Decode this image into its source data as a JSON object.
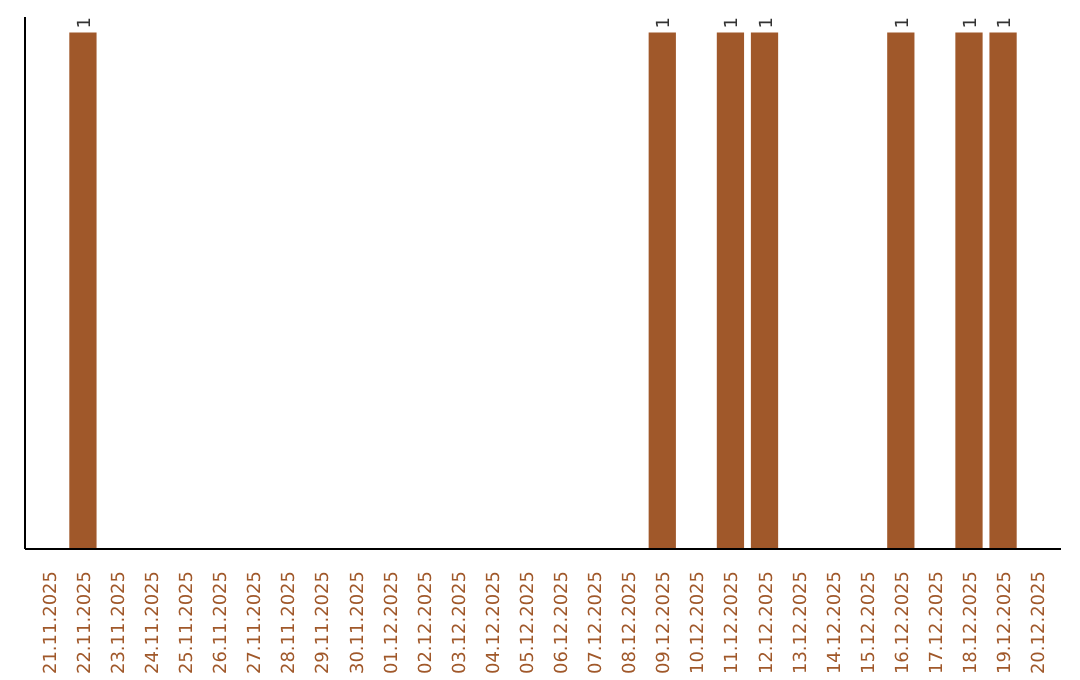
{
  "chart_data": {
    "type": "bar",
    "categories": [
      "21.11.2025",
      "22.11.2025",
      "23.11.2025",
      "24.11.2025",
      "25.11.2025",
      "26.11.2025",
      "27.11.2025",
      "28.11.2025",
      "29.11.2025",
      "30.11.2025",
      "01.12.2025",
      "02.12.2025",
      "03.12.2025",
      "04.12.2025",
      "05.12.2025",
      "06.12.2025",
      "07.12.2025",
      "08.12.2025",
      "09.12.2025",
      "10.12.2025",
      "11.12.2025",
      "12.12.2025",
      "13.12.2025",
      "14.12.2025",
      "15.12.2025",
      "16.12.2025",
      "17.12.2025",
      "18.12.2025",
      "19.12.2025",
      "20.12.2025"
    ],
    "values": [
      0,
      1,
      0,
      0,
      0,
      0,
      0,
      0,
      0,
      0,
      0,
      0,
      0,
      0,
      0,
      0,
      0,
      0,
      1,
      0,
      1,
      1,
      0,
      0,
      0,
      1,
      0,
      1,
      1,
      0
    ],
    "value_labels": [
      null,
      "1",
      null,
      null,
      null,
      null,
      null,
      null,
      null,
      null,
      null,
      null,
      null,
      null,
      null,
      null,
      null,
      null,
      "1",
      null,
      "1",
      "1",
      null,
      null,
      null,
      "1",
      null,
      "1",
      "1",
      null
    ],
    "color": "#a0582a",
    "grid": false
  }
}
